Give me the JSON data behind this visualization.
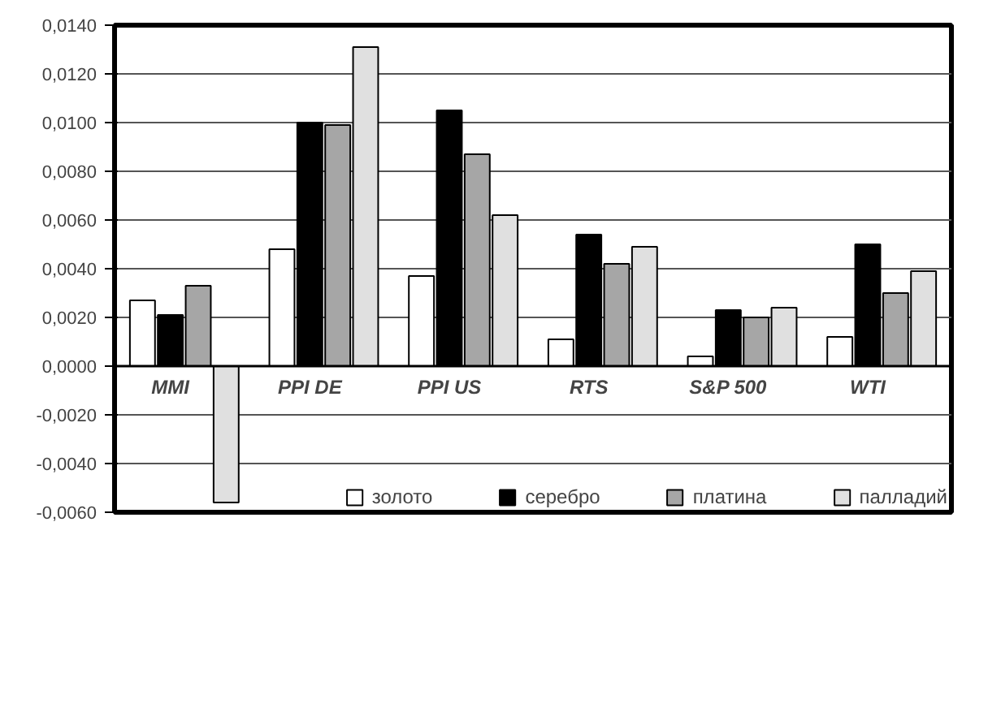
{
  "chart_data": {
    "type": "bar",
    "categories": [
      "MMI",
      "PPI DE",
      "PPI US",
      "RTS",
      "S&P 500",
      "WTI"
    ],
    "series": [
      {
        "name": "золото",
        "color": "#ffffff",
        "values": [
          0.0027,
          0.0048,
          0.0037,
          0.0011,
          0.0004,
          0.0012
        ]
      },
      {
        "name": "серебро",
        "color": "#000000",
        "values": [
          0.0021,
          0.01,
          0.0105,
          0.0054,
          0.0023,
          0.005
        ]
      },
      {
        "name": "платина",
        "color": "#a6a6a6",
        "values": [
          0.0033,
          0.0099,
          0.0087,
          0.0042,
          0.002,
          0.003
        ]
      },
      {
        "name": "палладий",
        "color": "#e0e0e0",
        "values": [
          -0.0056,
          0.0131,
          0.0062,
          0.0049,
          0.0024,
          0.0039
        ]
      }
    ],
    "ylim": [
      -0.006,
      0.014
    ],
    "yticks": [
      {
        "value": -0.006,
        "label": "-0,0060"
      },
      {
        "value": -0.004,
        "label": "-0,0040"
      },
      {
        "value": -0.002,
        "label": "-0,0020"
      },
      {
        "value": 0,
        "label": "0,0000"
      },
      {
        "value": 0.002,
        "label": "0,0020"
      },
      {
        "value": 0.004,
        "label": "0,0040"
      },
      {
        "value": 0.006,
        "label": "0,0060"
      },
      {
        "value": 0.008,
        "label": "0,0080"
      },
      {
        "value": 0.01,
        "label": "0,0100"
      },
      {
        "value": 0.012,
        "label": "0,0120"
      },
      {
        "value": 0.014,
        "label": "0,0140"
      }
    ],
    "grid": "y",
    "legend": "bottom"
  }
}
